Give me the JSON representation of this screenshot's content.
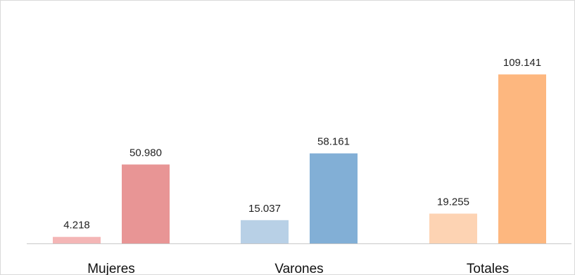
{
  "chart_data": {
    "type": "bar",
    "title": "",
    "xlabel": "",
    "ylabel": "",
    "categories": [
      "Mujeres",
      "Varones",
      "Totales"
    ],
    "series": [
      {
        "values": [
          4218,
          15037,
          19255
        ]
      },
      {
        "values": [
          50980,
          58161,
          109141
        ]
      }
    ],
    "value_labels": [
      [
        "4.218",
        "50.980"
      ],
      [
        "15.037",
        "58.161"
      ],
      [
        "19.255",
        "109.141"
      ]
    ],
    "ylim": [
      0,
      140000
    ],
    "grid": false,
    "legend": "none",
    "colors": [
      [
        "#f4b6b6",
        "#e89595"
      ],
      [
        "#b8d0e6",
        "#82afd6"
      ],
      [
        "#fdd3b3",
        "#fdb77f"
      ]
    ],
    "axis_color": "#c8c8c8"
  }
}
